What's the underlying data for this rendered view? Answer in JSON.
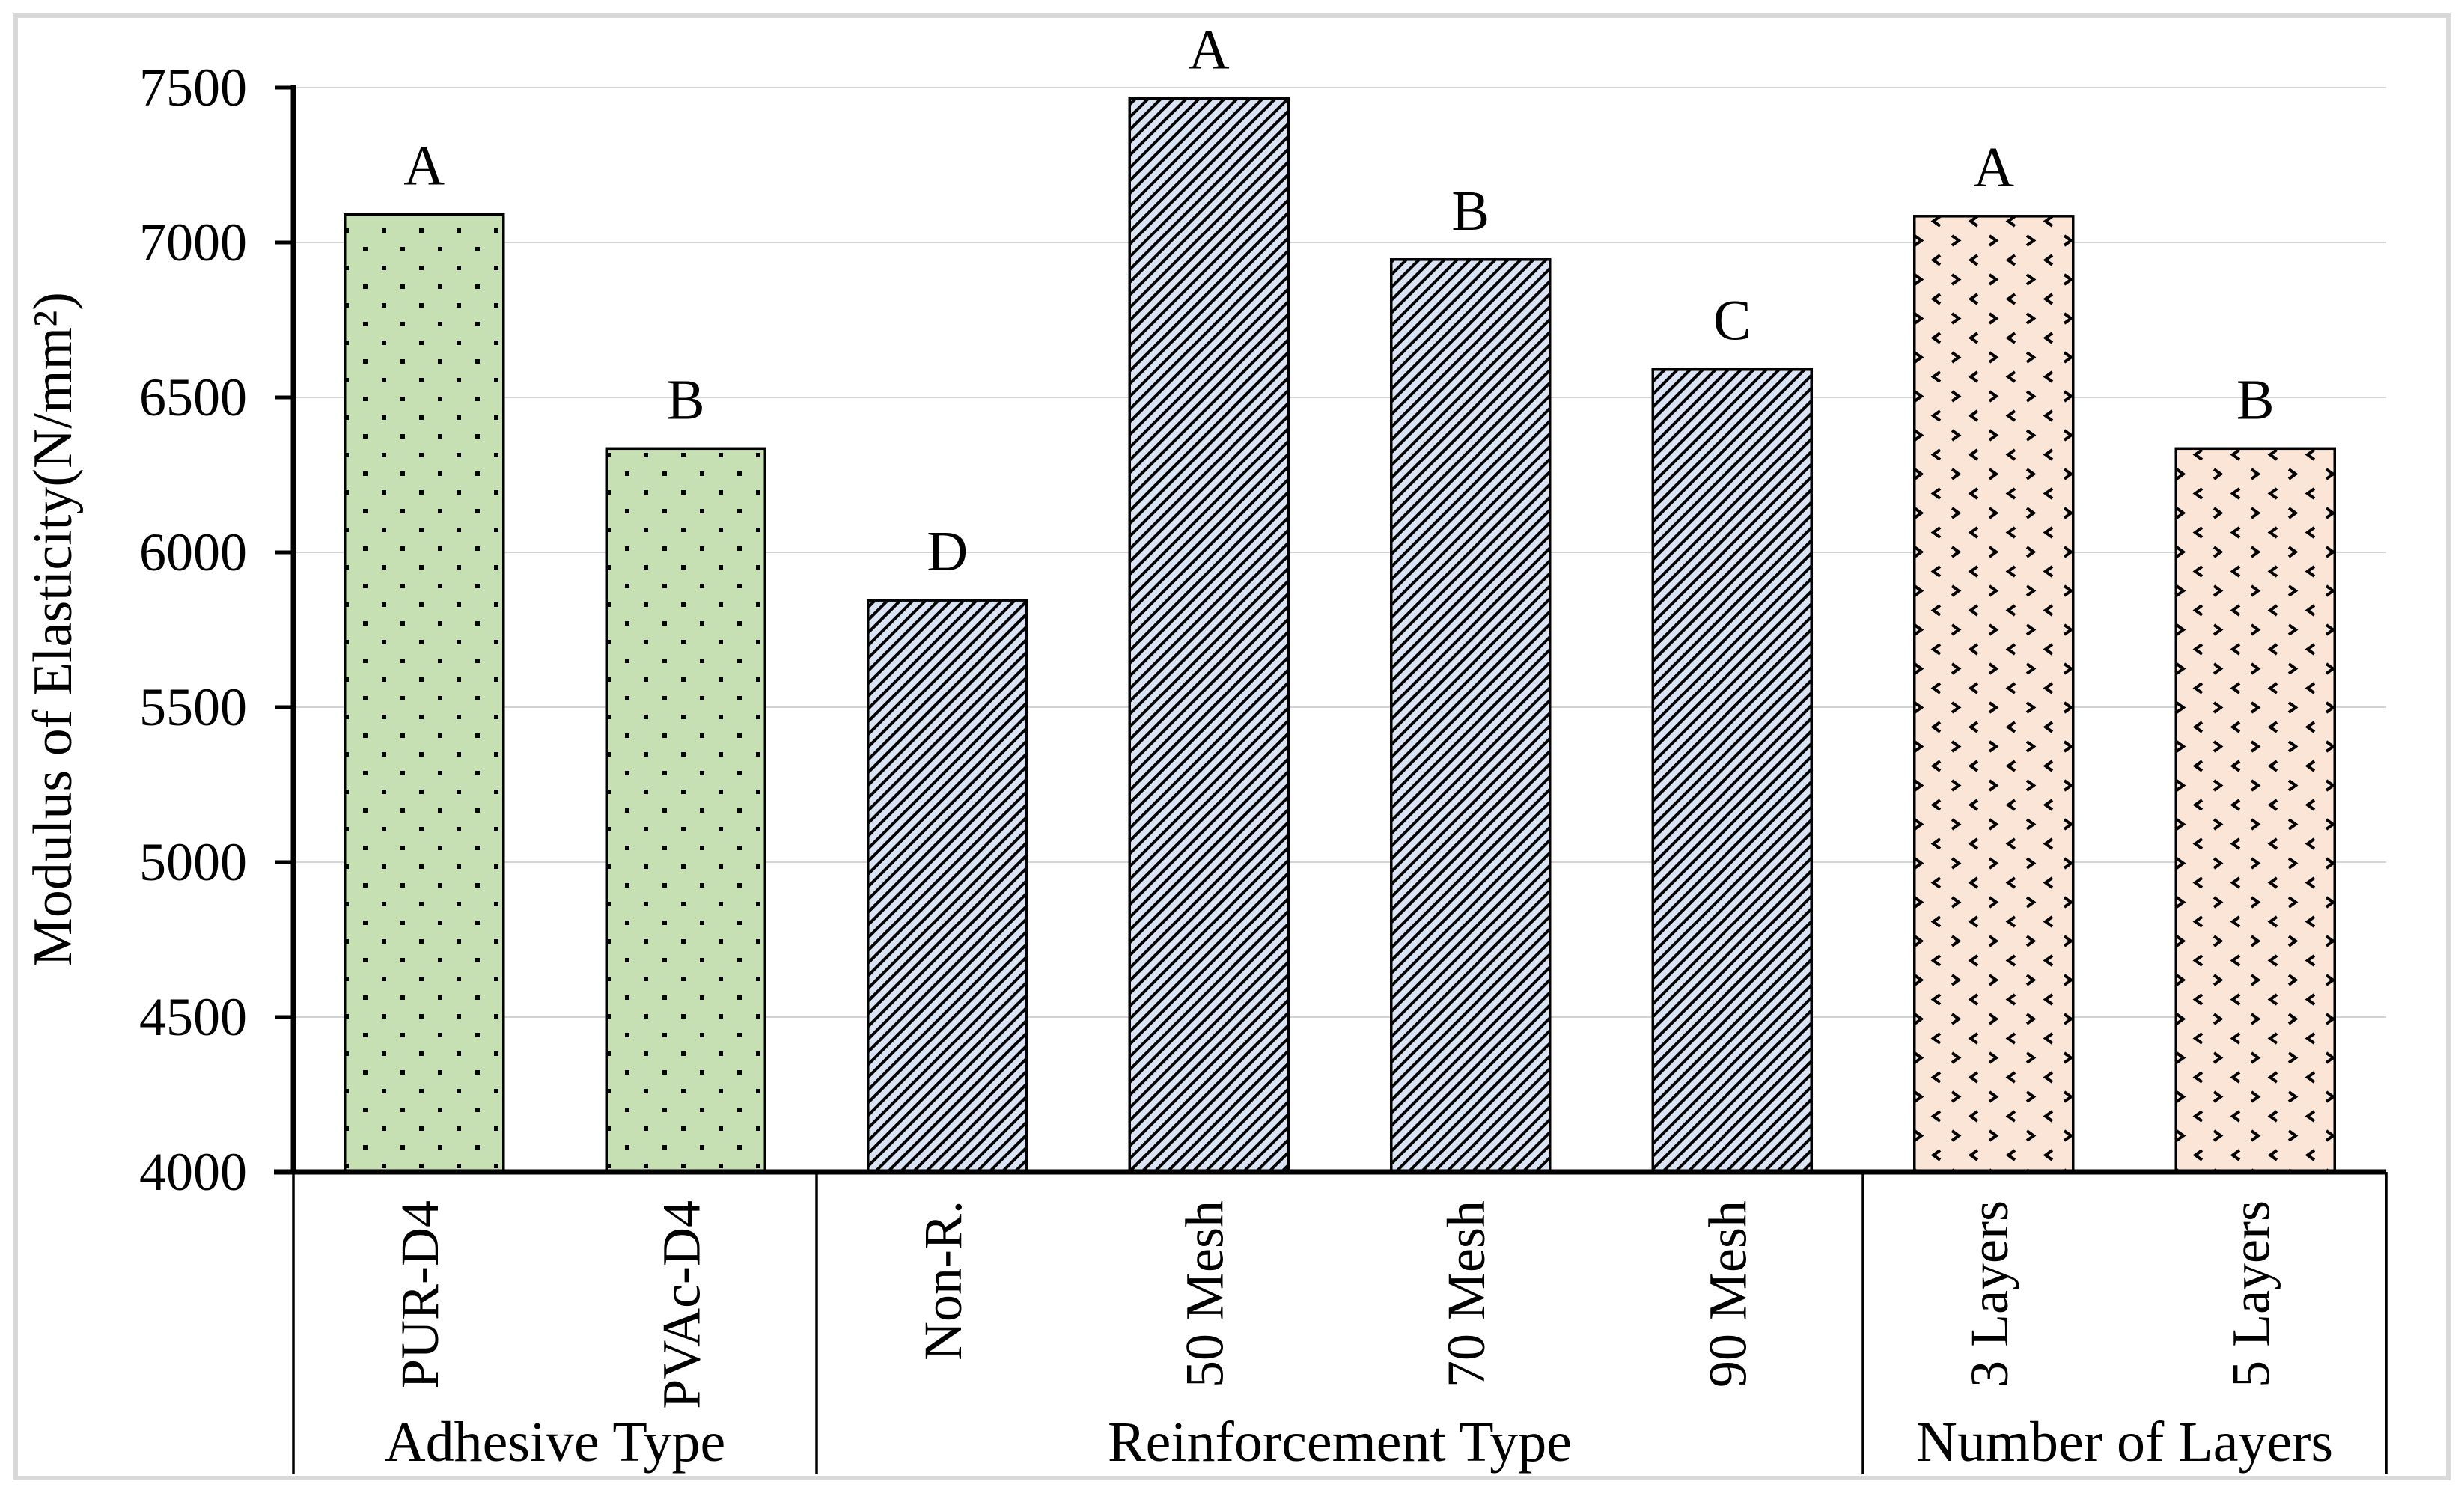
{
  "colors": {
    "background": "#ffffff",
    "chart_border": "#d9d9d9",
    "gridline": "#d3d3d3",
    "axis": "#000000",
    "text": "#000000",
    "pattern_ink": "#000000",
    "green_fill": "#c6e0b4",
    "blue_fill": "#dae3f3",
    "peach_fill": "#fbe5d6"
  },
  "chart_data": {
    "type": "bar",
    "title": "",
    "xlabel": "",
    "ylabel": "Modulus of Elasticity(N/mm²)",
    "ylim": [
      4000,
      7500
    ],
    "ytick_step": 500,
    "yticks": [
      4000,
      4500,
      5000,
      5500,
      6000,
      6500,
      7000,
      7500
    ],
    "grid": "horizontal",
    "legend": false,
    "groups": [
      {
        "label": "Adhesive Type",
        "pattern": "dots",
        "fill": "#c6e0b4",
        "bars": [
          {
            "category": "PUR-D4",
            "value": 7090,
            "letter": "A"
          },
          {
            "category": "PVAc-D4",
            "value": 6335,
            "letter": "B"
          }
        ]
      },
      {
        "label": "Reinforcement Type",
        "pattern": "diag",
        "fill": "#dae3f3",
        "bars": [
          {
            "category": "Non-R.",
            "value": 5845,
            "letter": "D"
          },
          {
            "category": "50 Mesh",
            "value": 7465,
            "letter": "A"
          },
          {
            "category": "70 Mesh",
            "value": 6945,
            "letter": "B"
          },
          {
            "category": "90 Mesh",
            "value": 6590,
            "letter": "C"
          }
        ]
      },
      {
        "label": "Number of Layers",
        "pattern": "chev",
        "fill": "#fbe5d6",
        "bars": [
          {
            "category": "3 Layers",
            "value": 7085,
            "letter": "A"
          },
          {
            "category": "5 Layers",
            "value": 6335,
            "letter": "B"
          }
        ]
      }
    ]
  }
}
